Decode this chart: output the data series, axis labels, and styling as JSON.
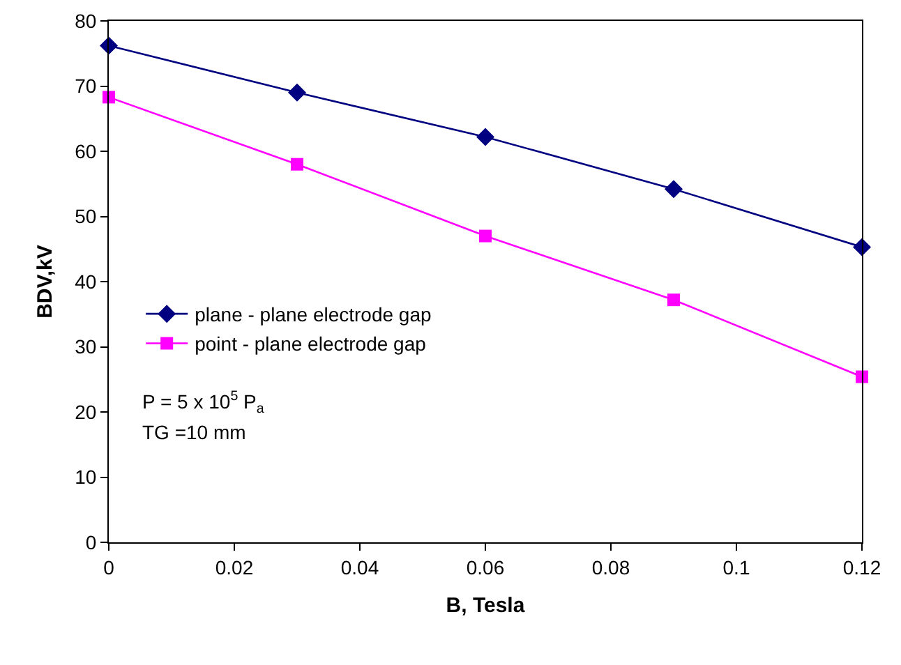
{
  "chart_data": {
    "type": "line",
    "xlabel": "B, Tesla",
    "ylabel": "BDV,kV",
    "x": [
      0,
      0.03,
      0.06,
      0.09,
      0.12
    ],
    "series": [
      {
        "name": "plane - plane electrode gap",
        "color": "#000080",
        "marker": "diamond",
        "values": [
          76.2,
          69,
          62.2,
          54.2,
          45.3
        ]
      },
      {
        "name": "point - plane electrode gap",
        "color": "#ff00ff",
        "marker": "square",
        "values": [
          68.3,
          58,
          47,
          37.2,
          25.4
        ]
      }
    ],
    "xlim": [
      0,
      0.12
    ],
    "xticks": [
      0,
      0.02,
      0.04,
      0.06,
      0.08,
      0.1,
      0.12
    ],
    "ylim": [
      0,
      80
    ],
    "yticks": [
      0,
      10,
      20,
      30,
      40,
      50,
      60,
      70,
      80
    ],
    "grid": false,
    "legend": "left",
    "line_style": "solid",
    "annotations": [
      "P = 5 x 10$^{5}$ P$_{a}$",
      "TG =10 mm"
    ]
  }
}
